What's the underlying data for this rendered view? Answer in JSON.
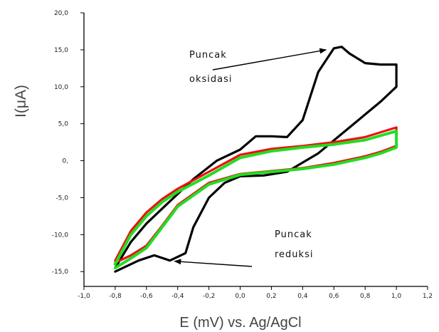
{
  "chart_data": {
    "type": "line",
    "title": "",
    "xlabel": "E (mV) vs. Ag/AgCl",
    "ylabel": "I(μA)",
    "xlim": [
      -1.0,
      1.2
    ],
    "ylim": [
      -17,
      20
    ],
    "x_ticks": [
      -1.0,
      -0.8,
      -0.6,
      -0.4,
      -0.2,
      0.0,
      0.2,
      0.4,
      0.6,
      0.8,
      1.0,
      1.2
    ],
    "x_tick_labels": [
      "-1,0",
      "-0,8",
      "-0,6",
      "-0,4",
      "-0,2",
      "0,0",
      "0,2",
      "0,4",
      "0,6",
      "0,8",
      "1,0",
      "1,2"
    ],
    "y_ticks": [
      20,
      15,
      10,
      5,
      0,
      -5,
      -10,
      -15
    ],
    "y_tick_labels": [
      "20,0",
      "15,0",
      "10,0",
      "5,0",
      "0,",
      "-5,0",
      "-10,0",
      "-15,0"
    ],
    "grid": false,
    "legend": "none",
    "series": [
      {
        "color": "#000000",
        "x": [
          -0.8,
          -0.7,
          -0.6,
          -0.45,
          -0.3,
          -0.15,
          0.0,
          0.1,
          0.2,
          0.3,
          0.4,
          0.5,
          0.6,
          0.65,
          0.7,
          0.8,
          0.9,
          1.0,
          1.0,
          0.9,
          0.7,
          0.5,
          0.3,
          0.15,
          0.0,
          -0.1,
          -0.2,
          -0.3,
          -0.35,
          -0.45,
          -0.55,
          -0.65,
          -0.8
        ],
        "y": [
          -14.5,
          -11.0,
          -8.5,
          -5.5,
          -2.5,
          0.0,
          1.5,
          3.3,
          3.3,
          3.2,
          5.5,
          12.0,
          15.2,
          15.4,
          14.5,
          13.2,
          13.0,
          13.0,
          10.0,
          8.0,
          4.5,
          1.0,
          -1.5,
          -2.0,
          -2.1,
          -3.0,
          -5.0,
          -9.0,
          -12.5,
          -13.5,
          -12.8,
          -13.5,
          -15.0
        ]
      },
      {
        "color": "#ee1111",
        "x": [
          -0.8,
          -0.7,
          -0.6,
          -0.5,
          -0.4,
          -0.2,
          0.0,
          0.2,
          0.4,
          0.6,
          0.8,
          1.0,
          1.0,
          0.9,
          0.8,
          0.6,
          0.4,
          0.2,
          0.0,
          -0.2,
          -0.4,
          -0.5,
          -0.6,
          -0.7,
          -0.8
        ],
        "y": [
          -13.5,
          -9.5,
          -7.0,
          -5.2,
          -3.8,
          -1.5,
          0.8,
          1.6,
          2.0,
          2.5,
          3.2,
          4.5,
          2.0,
          1.2,
          0.6,
          -0.3,
          -1.0,
          -1.4,
          -1.8,
          -3.0,
          -6.0,
          -8.8,
          -11.5,
          -12.8,
          -13.8
        ]
      },
      {
        "color": "#22dd22",
        "x": [
          -0.8,
          -0.7,
          -0.6,
          -0.5,
          -0.4,
          -0.2,
          0.0,
          0.2,
          0.4,
          0.6,
          0.8,
          1.0,
          1.0,
          0.9,
          0.8,
          0.6,
          0.4,
          0.2,
          0.0,
          -0.2,
          -0.4,
          -0.5,
          -0.6,
          -0.7,
          -0.8
        ],
        "y": [
          -14.0,
          -10.0,
          -7.5,
          -5.6,
          -4.2,
          -2.0,
          0.4,
          1.3,
          1.8,
          2.2,
          2.8,
          4.0,
          1.8,
          1.0,
          0.4,
          -0.5,
          -1.1,
          -1.5,
          -1.9,
          -3.2,
          -6.2,
          -9.0,
          -11.8,
          -13.2,
          -14.5
        ]
      }
    ],
    "annotations": [
      {
        "lines": [
          "Puncak",
          "oksidasi"
        ],
        "arrow_to": {
          "x": 0.55,
          "y": 15.0
        }
      },
      {
        "lines": [
          "Puncak",
          "reduksi"
        ],
        "arrow_to": {
          "x": -0.42,
          "y": -13.6
        }
      }
    ]
  }
}
